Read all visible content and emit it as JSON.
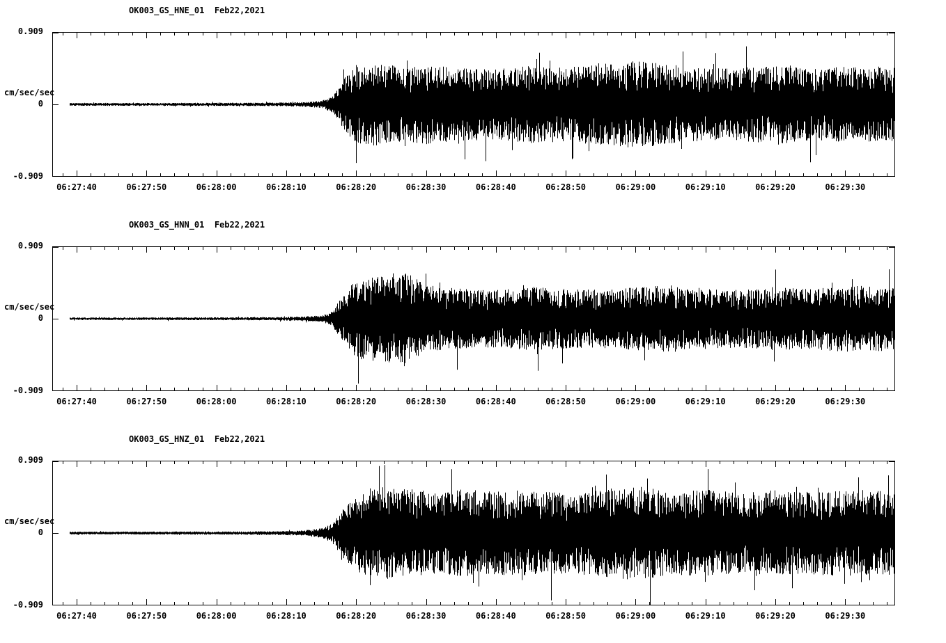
{
  "page": {
    "background": "#ffffff",
    "trace_color": "#000000",
    "frame_color": "#000000"
  },
  "chart_data": [
    {
      "type": "line",
      "kind": "seismogram-waveform",
      "title": "OK003_GS_HNE_01  Feb22,2021",
      "station": "OK003_GS_HNE_01",
      "date": "Feb22,2021",
      "ylabel": "cm/sec/sec",
      "ylim": [
        -0.909,
        0.909
      ],
      "ytick_labels": [
        "0.909",
        "0",
        "-0.909"
      ],
      "xtick_labels": [
        "06:27:40",
        "06:27:50",
        "06:28:00",
        "06:28:10",
        "06:28:20",
        "06:28:30",
        "06:28:40",
        "06:28:50",
        "06:29:00",
        "06:29:10",
        "06:29:20",
        "06:29:30"
      ],
      "x_major_interval_seconds": 10,
      "x_minor_interval_seconds": 2,
      "trace_start_seconds": -1,
      "trace_end_seconds": 117.2,
      "envelope": {
        "t_seconds": [
          -1,
          0,
          20,
          28,
          32,
          35,
          36.5,
          38,
          40,
          43,
          46,
          50,
          55,
          60,
          65,
          70,
          75,
          80,
          85,
          90,
          95,
          100,
          105,
          110,
          117.2
        ],
        "amplitude": [
          0.018,
          0.018,
          0.02,
          0.022,
          0.028,
          0.045,
          0.1,
          0.3,
          0.5,
          0.52,
          0.48,
          0.5,
          0.46,
          0.44,
          0.5,
          0.46,
          0.52,
          0.55,
          0.5,
          0.45,
          0.46,
          0.5,
          0.45,
          0.48,
          0.46
        ]
      },
      "seed": 11
    },
    {
      "type": "line",
      "kind": "seismogram-waveform",
      "title": "OK003_GS_HNN_01  Feb22,2021",
      "station": "OK003_GS_HNN_01",
      "date": "Feb22,2021",
      "ylabel": "cm/sec/sec",
      "ylim": [
        -0.909,
        0.909
      ],
      "ytick_labels": [
        "0.909",
        "0",
        "-0.909"
      ],
      "xtick_labels": [
        "06:27:40",
        "06:27:50",
        "06:28:00",
        "06:28:10",
        "06:28:20",
        "06:28:30",
        "06:28:40",
        "06:28:50",
        "06:29:00",
        "06:29:10",
        "06:29:20",
        "06:29:30"
      ],
      "x_major_interval_seconds": 10,
      "x_minor_interval_seconds": 2,
      "trace_start_seconds": -1,
      "trace_end_seconds": 117.2,
      "envelope": {
        "t_seconds": [
          -1,
          0,
          20,
          28,
          32,
          35,
          36.5,
          38,
          40,
          44,
          47,
          50,
          55,
          60,
          65,
          70,
          75,
          80,
          85,
          90,
          95,
          100,
          105,
          110,
          117.2
        ],
        "amplitude": [
          0.016,
          0.016,
          0.018,
          0.02,
          0.026,
          0.04,
          0.09,
          0.28,
          0.5,
          0.55,
          0.6,
          0.42,
          0.38,
          0.36,
          0.4,
          0.38,
          0.36,
          0.4,
          0.42,
          0.38,
          0.36,
          0.4,
          0.38,
          0.42,
          0.4
        ]
      },
      "seed": 47
    },
    {
      "type": "line",
      "kind": "seismogram-waveform",
      "title": "OK003_GS_HNZ_01  Feb22,2021",
      "station": "OK003_GS_HNZ_01",
      "date": "Feb22,2021",
      "ylabel": "cm/sec/sec",
      "ylim": [
        -0.909,
        0.909
      ],
      "ytick_labels": [
        "0.909",
        "0",
        "-0.909"
      ],
      "xtick_labels": [
        "06:27:40",
        "06:27:50",
        "06:28:00",
        "06:28:10",
        "06:28:20",
        "06:28:30",
        "06:28:40",
        "06:28:50",
        "06:29:00",
        "06:29:10",
        "06:29:20",
        "06:29:30"
      ],
      "x_major_interval_seconds": 10,
      "x_minor_interval_seconds": 2,
      "trace_start_seconds": -1,
      "trace_end_seconds": 117.2,
      "envelope": {
        "t_seconds": [
          -1,
          0,
          20,
          28,
          32,
          35,
          36.5,
          38,
          40,
          44,
          48,
          52,
          55,
          60,
          65,
          70,
          75,
          80,
          85,
          90,
          95,
          100,
          105,
          110,
          117.2
        ],
        "amplitude": [
          0.018,
          0.018,
          0.02,
          0.024,
          0.03,
          0.06,
          0.12,
          0.3,
          0.5,
          0.58,
          0.55,
          0.5,
          0.55,
          0.52,
          0.55,
          0.5,
          0.55,
          0.6,
          0.52,
          0.55,
          0.5,
          0.55,
          0.52,
          0.55,
          0.52
        ]
      },
      "seed": 83
    }
  ]
}
